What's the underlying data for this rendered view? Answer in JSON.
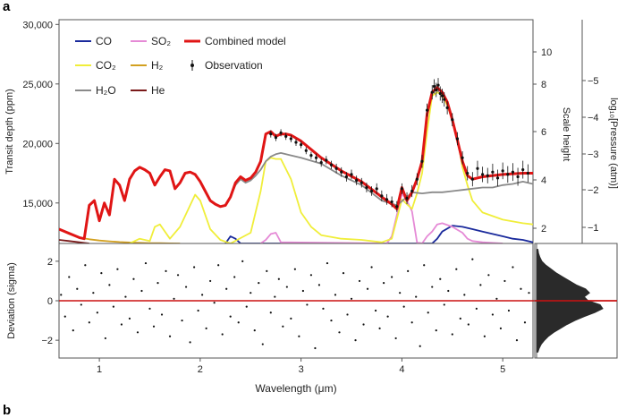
{
  "panel_label_a": "a",
  "panel_label_b": "b",
  "chart_data": [
    {
      "type": "line",
      "xlabel": "",
      "ylabel": "Transit depth (ppm)",
      "y2label": "Scale height",
      "y3label": "log₁₀[Pressure (atm)]",
      "xlim": [
        0.6,
        5.3
      ],
      "ylim": [
        11600,
        30400
      ],
      "y_ticks": [
        15000,
        20000,
        25000,
        30000
      ],
      "y_tick_labels": [
        "15,000",
        "20,000",
        "25,000",
        "30,000"
      ],
      "y2_ticks": [
        2,
        4,
        6,
        8,
        10
      ],
      "y3_ticks": [
        -1,
        -2,
        -3,
        -4,
        -5
      ],
      "legend_position": "top-left",
      "legend": [
        {
          "label": "CO",
          "color": "#1a2a9c"
        },
        {
          "label": "SO₂",
          "color": "#e58ad6"
        },
        {
          "label": "Combined model",
          "color": "#e01515"
        },
        {
          "label": "CO₂",
          "color": "#f0ee3a"
        },
        {
          "label": "H₂",
          "color": "#d2a020"
        },
        {
          "label": "Observation",
          "color": "#111111"
        },
        {
          "label": "H₂O",
          "color": "#8a8a8a"
        },
        {
          "label": "He",
          "color": "#7a1a1a"
        }
      ],
      "series": [
        {
          "name": "Combined model",
          "color": "#e01515",
          "x": [
            0.6,
            0.8,
            0.85,
            0.9,
            0.95,
            1.0,
            1.05,
            1.1,
            1.15,
            1.2,
            1.25,
            1.3,
            1.35,
            1.4,
            1.45,
            1.5,
            1.55,
            1.6,
            1.65,
            1.7,
            1.75,
            1.8,
            1.85,
            1.9,
            1.95,
            2.0,
            2.05,
            2.1,
            2.15,
            2.2,
            2.25,
            2.3,
            2.35,
            2.4,
            2.45,
            2.5,
            2.55,
            2.6,
            2.65,
            2.7,
            2.75,
            2.8,
            2.85,
            2.9,
            3.0,
            3.2,
            3.4,
            3.6,
            3.8,
            3.9,
            3.95,
            4.0,
            4.05,
            4.1,
            4.15,
            4.2,
            4.25,
            4.3,
            4.35,
            4.4,
            4.45,
            4.5,
            4.55,
            4.6,
            4.65,
            4.7,
            4.8,
            5.0,
            5.2,
            5.3
          ],
          "y": [
            12800,
            12100,
            12000,
            14800,
            15200,
            13500,
            15000,
            14000,
            17000,
            16500,
            15200,
            17000,
            17700,
            18000,
            17800,
            17500,
            16500,
            17200,
            17800,
            17700,
            16200,
            16700,
            17500,
            17600,
            17400,
            16800,
            16000,
            15200,
            14900,
            14700,
            14800,
            15500,
            16700,
            17200,
            16900,
            17100,
            17600,
            18500,
            20800,
            21000,
            20600,
            20800,
            20800,
            20700,
            20200,
            18800,
            17700,
            16800,
            15500,
            14900,
            14500,
            16300,
            15200,
            15900,
            17000,
            18500,
            22500,
            24300,
            24700,
            24300,
            23500,
            22000,
            20300,
            18500,
            17300,
            17000,
            17200,
            17400,
            17500,
            17500
          ]
        },
        {
          "name": "H₂O",
          "color": "#8a8a8a",
          "x": [
            0.85,
            0.9,
            0.95,
            1.0,
            1.05,
            1.1,
            1.15,
            1.2,
            1.25,
            1.3,
            1.35,
            1.4,
            1.45,
            1.5,
            1.55,
            1.6,
            1.65,
            1.7,
            1.75,
            1.8,
            1.85,
            1.9,
            1.95,
            2.0,
            2.05,
            2.1,
            2.15,
            2.2,
            2.25,
            2.3,
            2.35,
            2.4,
            2.45,
            2.5,
            2.55,
            2.6,
            2.65,
            2.7,
            2.75,
            2.8,
            2.9,
            3.0,
            3.2,
            3.4,
            3.6,
            3.8,
            3.95,
            4.05,
            4.1,
            4.2,
            4.3,
            4.4,
            4.5,
            4.6,
            4.7,
            4.8,
            4.9,
            5.0,
            5.1,
            5.2,
            5.3
          ],
          "y": [
            12000,
            14800,
            15200,
            13500,
            15000,
            14000,
            17000,
            16500,
            15200,
            17000,
            17700,
            18000,
            17800,
            17500,
            16500,
            17200,
            17800,
            17700,
            16200,
            16700,
            17500,
            17600,
            17400,
            16800,
            16000,
            15200,
            14900,
            14700,
            14800,
            15500,
            16500,
            17000,
            16700,
            16900,
            17300,
            17800,
            18500,
            18900,
            19100,
            19200,
            19000,
            18800,
            18300,
            17300,
            16500,
            15200,
            14800,
            15500,
            15900,
            15800,
            15900,
            15900,
            16000,
            16100,
            16200,
            16300,
            16300,
            16500,
            16600,
            16800,
            16600
          ]
        },
        {
          "name": "CO₂",
          "color": "#f0ee3a",
          "x": [
            1.3,
            1.4,
            1.5,
            1.55,
            1.6,
            1.7,
            1.8,
            1.9,
            1.95,
            2.0,
            2.05,
            2.1,
            2.2,
            2.3,
            2.5,
            2.6,
            2.65,
            2.7,
            2.75,
            2.8,
            2.9,
            3.0,
            3.1,
            3.2,
            3.4,
            3.6,
            3.8,
            3.9,
            4.0,
            4.05,
            4.1,
            4.15,
            4.2,
            4.25,
            4.3,
            4.35,
            4.4,
            4.45,
            4.5,
            4.55,
            4.6,
            4.65,
            4.7,
            4.8,
            5.0,
            5.2,
            5.3
          ],
          "y": [
            11600,
            12000,
            11800,
            13000,
            13200,
            12000,
            13000,
            14800,
            15700,
            15200,
            14000,
            12800,
            11900,
            11600,
            12500,
            16000,
            18500,
            18800,
            18700,
            18700,
            17000,
            14200,
            13000,
            12300,
            12000,
            11900,
            11700,
            12000,
            15300,
            14900,
            14500,
            15800,
            17500,
            21000,
            24000,
            24300,
            24100,
            23200,
            22000,
            20500,
            18000,
            16500,
            15200,
            14200,
            13600,
            13300,
            13200
          ]
        },
        {
          "name": "SO₂",
          "color": "#e58ad6",
          "x": [
            2.6,
            2.65,
            2.7,
            2.75,
            2.8,
            3.85,
            3.9,
            3.95,
            4.0,
            4.05,
            4.1,
            4.15,
            4.2,
            4.25,
            4.3,
            4.35,
            4.4,
            4.5,
            4.6,
            4.65,
            4.7,
            4.8,
            5.0
          ],
          "y": [
            11600,
            11900,
            12400,
            12500,
            11700,
            11600,
            12200,
            14000,
            15800,
            15200,
            14300,
            11700,
            11600,
            12200,
            12600,
            13200,
            13300,
            13000,
            12500,
            12000,
            11800,
            11700,
            11600
          ]
        },
        {
          "name": "CO",
          "color": "#1a2a9c",
          "x": [
            2.25,
            2.3,
            2.35,
            2.4,
            4.3,
            4.35,
            4.4,
            4.5,
            4.6,
            4.7,
            4.8,
            4.9,
            5.0,
            5.1,
            5.2,
            5.3
          ],
          "y": [
            11600,
            12200,
            12000,
            11600,
            11600,
            12000,
            12600,
            13100,
            13000,
            12800,
            12600,
            12400,
            12200,
            12000,
            11900,
            11700
          ]
        },
        {
          "name": "H₂",
          "color": "#d2a020",
          "x": [
            0.6,
            0.7,
            0.8,
            0.9,
            1.0,
            1.1,
            1.2,
            1.3,
            1.4,
            1.5,
            1.6,
            1.7,
            1.8
          ],
          "y": [
            12800,
            12400,
            12100,
            11950,
            11850,
            11780,
            11720,
            11680,
            11650,
            11630,
            11620,
            11610,
            11600
          ]
        },
        {
          "name": "He",
          "color": "#7a1a1a",
          "x": [
            0.6,
            0.7,
            0.8,
            0.9
          ],
          "y": [
            11900,
            11800,
            11700,
            11600
          ]
        }
      ],
      "observation": {
        "name": "Observation",
        "color": "#111111",
        "x": [
          2.7,
          2.75,
          2.8,
          2.85,
          2.9,
          2.95,
          3.0,
          3.05,
          3.1,
          3.15,
          3.2,
          3.25,
          3.3,
          3.35,
          3.4,
          3.45,
          3.5,
          3.55,
          3.6,
          3.65,
          3.7,
          3.75,
          3.8,
          3.85,
          3.9,
          3.95,
          4.0,
          4.05,
          4.1,
          4.15,
          4.2,
          4.25,
          4.3,
          4.32,
          4.34,
          4.36,
          4.38,
          4.4,
          4.42,
          4.45,
          4.5,
          4.55,
          4.6,
          4.65,
          4.7,
          4.75,
          4.8,
          4.85,
          4.9,
          4.95,
          5.0,
          5.05,
          5.1,
          5.15,
          5.2,
          5.25
        ],
        "y": [
          20800,
          20500,
          20900,
          20600,
          20400,
          20100,
          19900,
          19400,
          19000,
          18800,
          18400,
          18600,
          18200,
          17900,
          17600,
          17200,
          17400,
          16900,
          16700,
          16300,
          16000,
          16200,
          15600,
          15300,
          15100,
          14700,
          16200,
          15400,
          16000,
          17000,
          18500,
          22800,
          24300,
          24800,
          24500,
          24900,
          24200,
          24000,
          23700,
          23000,
          22000,
          20400,
          18800,
          17500,
          17000,
          17900,
          17400,
          17300,
          17600,
          17100,
          17700,
          17400,
          17600,
          17200,
          17800,
          17500
        ],
        "err": [
          300,
          300,
          300,
          300,
          300,
          300,
          300,
          300,
          300,
          350,
          350,
          350,
          350,
          400,
          400,
          400,
          400,
          400,
          400,
          400,
          400,
          450,
          450,
          450,
          450,
          450,
          450,
          500,
          500,
          500,
          550,
          550,
          600,
          600,
          600,
          600,
          600,
          600,
          600,
          550,
          550,
          550,
          550,
          600,
          600,
          650,
          650,
          650,
          700,
          700,
          700,
          700,
          750,
          750,
          750,
          750
        ]
      }
    },
    {
      "type": "scatter",
      "xlabel": "Wavelength (μm)",
      "ylabel": "Deviation (sigma)",
      "xlim": [
        0.6,
        5.3
      ],
      "ylim": [
        -2.9,
        2.9
      ],
      "x_ticks": [
        1,
        2,
        3,
        4,
        5
      ],
      "y_ticks": [
        -2,
        0,
        2
      ],
      "reference_line": {
        "y": 0,
        "color": "#cc1111"
      },
      "residuals": {
        "x": [
          0.62,
          0.66,
          0.7,
          0.74,
          0.78,
          0.82,
          0.86,
          0.9,
          0.94,
          0.98,
          1.02,
          1.06,
          1.1,
          1.14,
          1.18,
          1.22,
          1.26,
          1.3,
          1.34,
          1.38,
          1.42,
          1.46,
          1.5,
          1.54,
          1.58,
          1.62,
          1.66,
          1.7,
          1.74,
          1.78,
          1.82,
          1.86,
          1.9,
          1.94,
          1.98,
          2.02,
          2.06,
          2.1,
          2.14,
          2.18,
          2.22,
          2.26,
          2.3,
          2.34,
          2.38,
          2.42,
          2.46,
          2.5,
          2.54,
          2.58,
          2.62,
          2.66,
          2.7,
          2.74,
          2.78,
          2.82,
          2.86,
          2.9,
          2.94,
          2.98,
          3.02,
          3.06,
          3.1,
          3.14,
          3.18,
          3.22,
          3.26,
          3.3,
          3.34,
          3.38,
          3.42,
          3.46,
          3.5,
          3.54,
          3.58,
          3.62,
          3.66,
          3.7,
          3.74,
          3.78,
          3.82,
          3.86,
          3.9,
          3.94,
          3.98,
          4.02,
          4.06,
          4.1,
          4.14,
          4.18,
          4.22,
          4.26,
          4.3,
          4.34,
          4.38,
          4.42,
          4.46,
          4.5,
          4.54,
          4.58,
          4.62,
          4.66,
          4.7,
          4.74,
          4.78,
          4.82,
          4.86,
          4.9,
          4.94,
          4.98,
          5.02,
          5.06,
          5.1,
          5.14,
          5.18,
          5.22,
          5.26
        ],
        "y": [
          0.3,
          -0.8,
          1.2,
          -1.5,
          0.6,
          -0.2,
          1.8,
          -1.1,
          0.4,
          -0.6,
          1.4,
          -1.9,
          0.8,
          -0.3,
          1.6,
          -1.2,
          0.2,
          -0.9,
          1.1,
          -1.6,
          0.5,
          1.9,
          -0.4,
          -1.3,
          0.9,
          -0.7,
          1.5,
          -1.8,
          0.1,
          1.3,
          -1.0,
          0.7,
          -2.1,
          1.7,
          -0.5,
          0.3,
          -1.4,
          1.0,
          -0.1,
          1.8,
          -1.7,
          0.6,
          -0.8,
          1.2,
          -1.1,
          2.0,
          -0.3,
          0.4,
          -1.5,
          0.9,
          -2.2,
          1.5,
          -0.6,
          0.2,
          1.1,
          -1.3,
          0.7,
          -0.9,
          1.6,
          -1.8,
          0.5,
          -0.2,
          1.3,
          -2.4,
          0.8,
          -0.4,
          1.9,
          -1.0,
          0.3,
          -1.6,
          1.4,
          -0.7,
          0.1,
          -2.0,
          1.0,
          -1.2,
          0.6,
          1.7,
          -0.5,
          -1.4,
          0.9,
          -0.8,
          1.2,
          -1.9,
          0.4,
          -0.3,
          1.5,
          -1.1,
          0.2,
          -2.3,
          1.8,
          -0.6,
          0.7,
          -1.5,
          1.1,
          -0.2,
          0.5,
          -1.7,
          1.6,
          -0.9,
          0.3,
          -1.2,
          2.1,
          -0.4,
          0.8,
          -1.8,
          1.3,
          -0.7,
          0.1,
          -1.4,
          1.0,
          -0.5,
          1.7,
          -2.0,
          0.6,
          -1.1,
          0.4
        ]
      },
      "histogram": {
        "bin_centers": [
          -2.6,
          -2.4,
          -2.2,
          -2.0,
          -1.8,
          -1.6,
          -1.4,
          -1.2,
          -1.0,
          -0.8,
          -0.6,
          -0.4,
          -0.2,
          0.0,
          0.2,
          0.4,
          0.6,
          0.8,
          1.0,
          1.2,
          1.4,
          1.6,
          1.8,
          2.0,
          2.2,
          2.4,
          2.6
        ],
        "density": [
          0.02,
          0.04,
          0.07,
          0.12,
          0.18,
          0.26,
          0.36,
          0.46,
          0.58,
          0.72,
          0.88,
          1.0,
          0.96,
          0.78,
          0.72,
          0.8,
          0.74,
          0.6,
          0.5,
          0.4,
          0.3,
          0.22,
          0.14,
          0.08,
          0.05,
          0.03,
          0.02
        ],
        "color": "#2a2a2a"
      }
    }
  ]
}
